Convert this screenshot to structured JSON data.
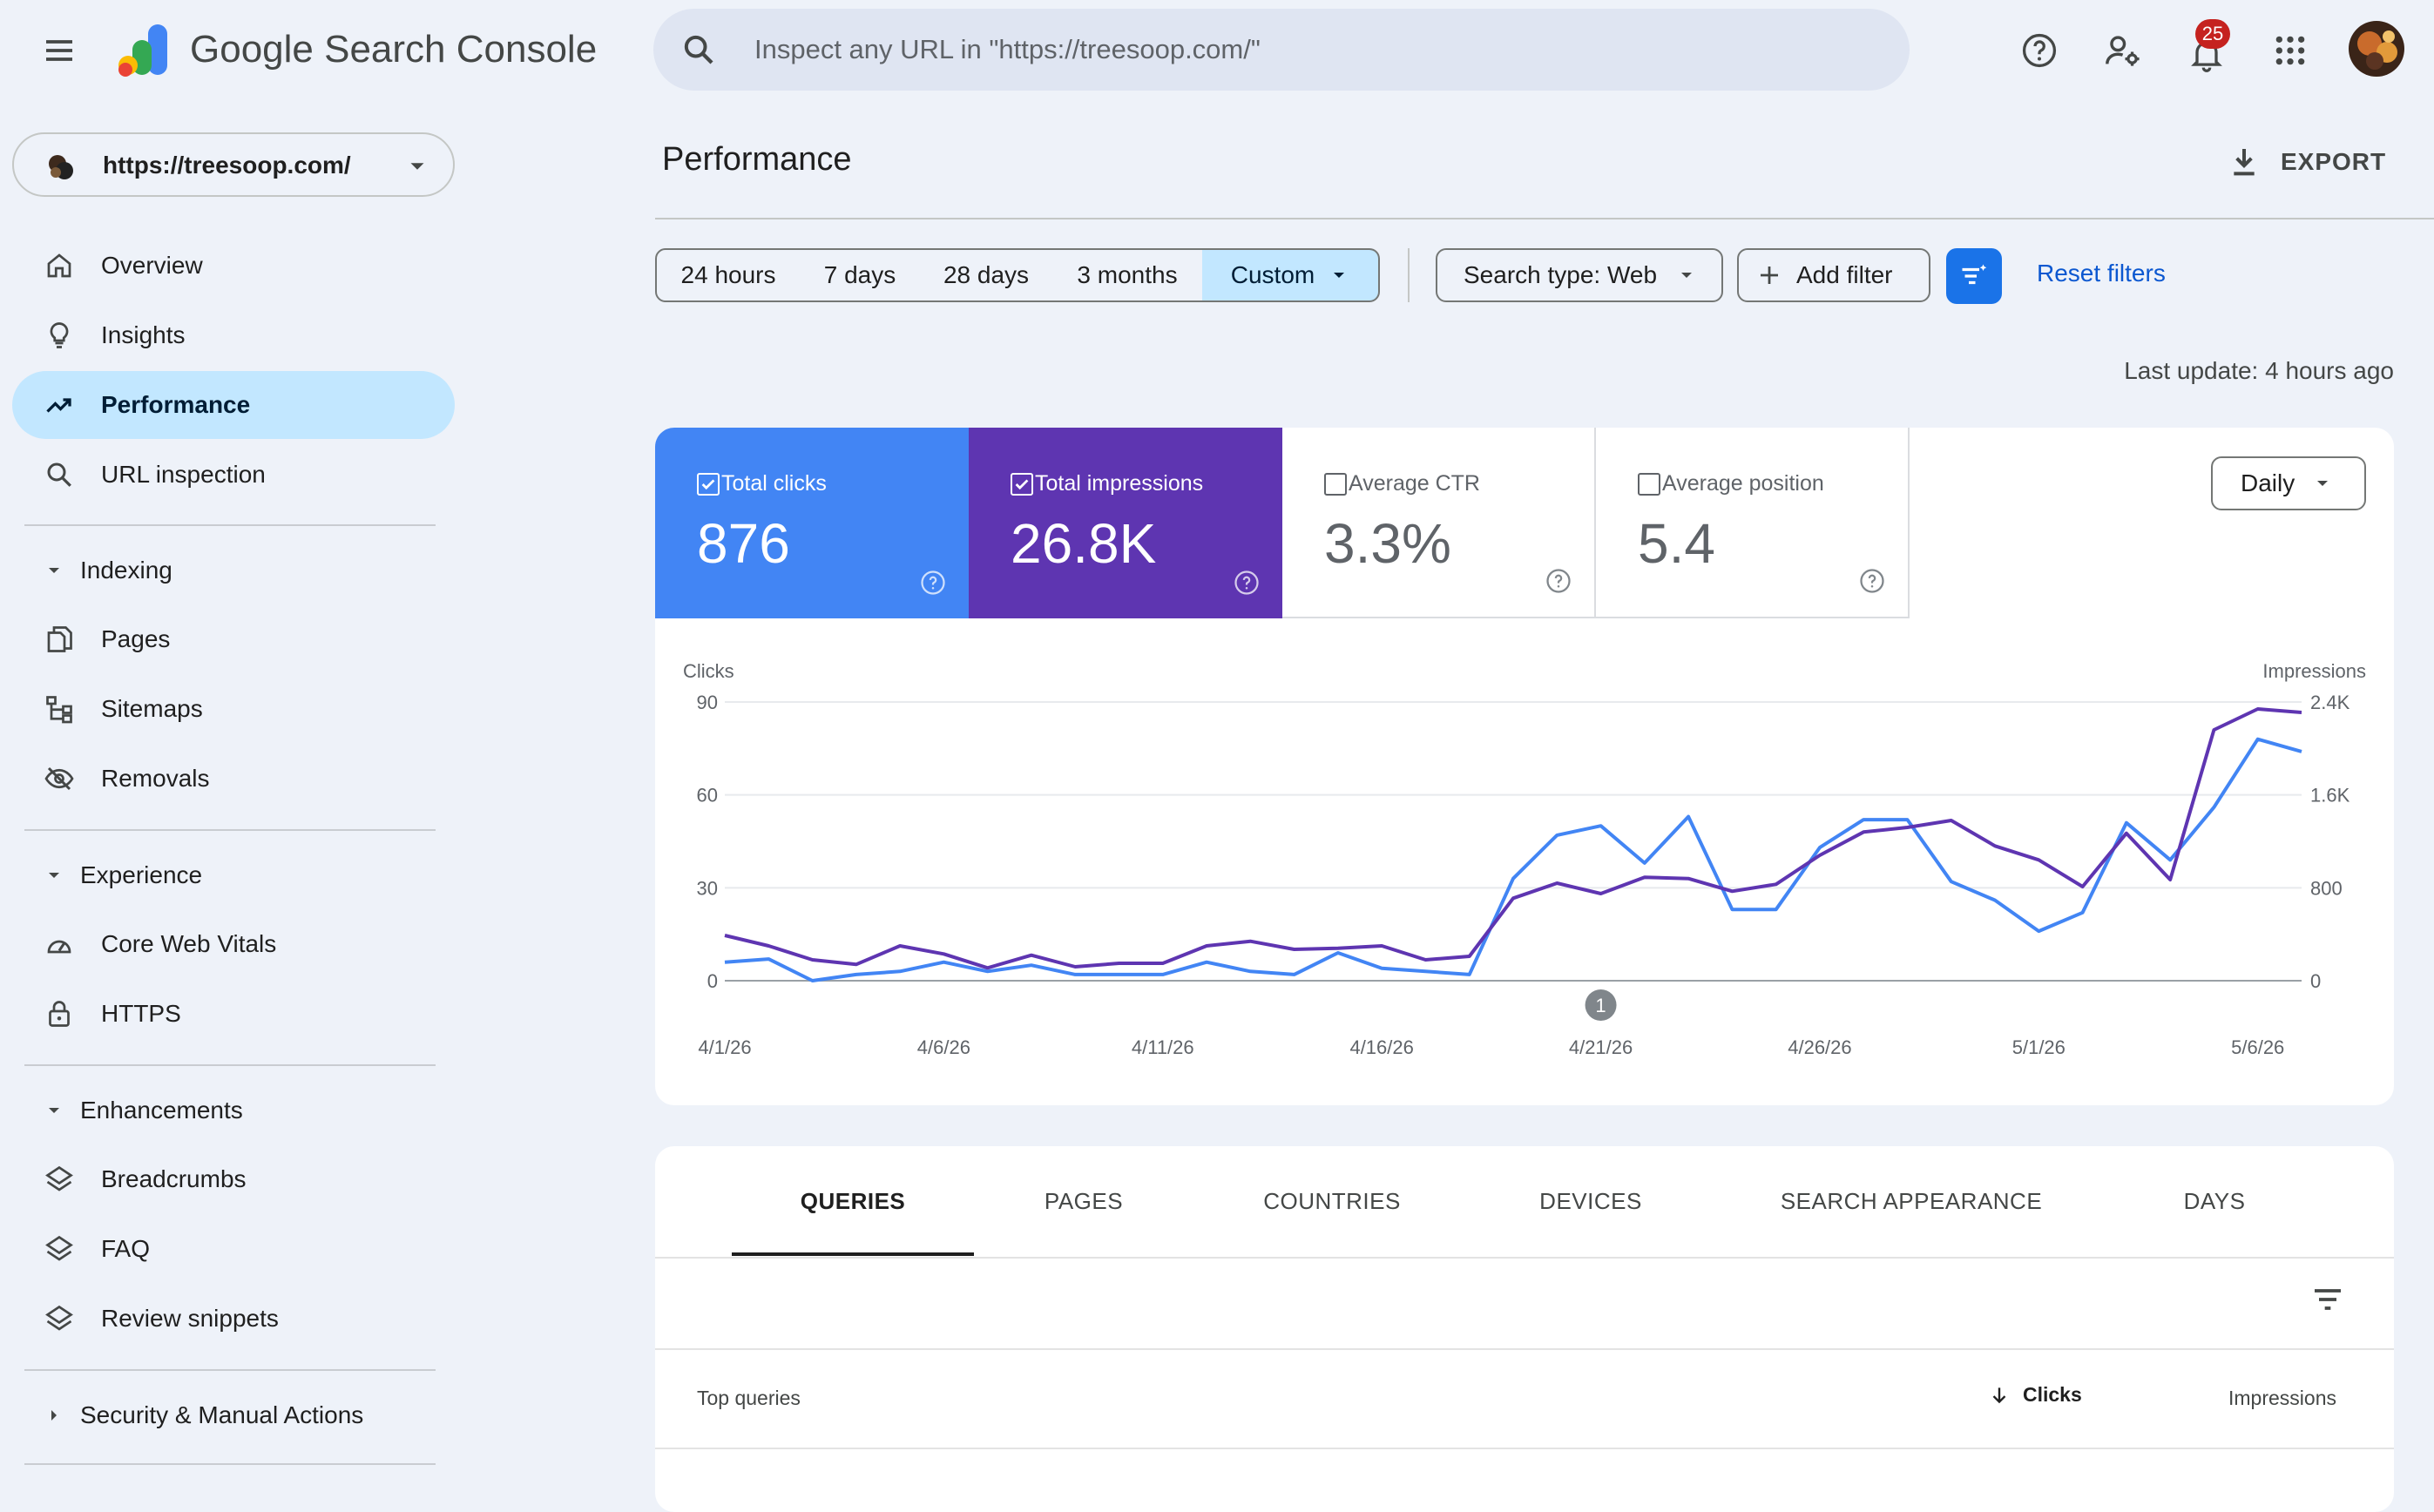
{
  "header": {
    "app_name": "Google Search Console",
    "search_placeholder": "Inspect any URL in \"https://treesoop.com/\"",
    "notification_count": "25"
  },
  "sidebar": {
    "property": "https://treesoop.com/",
    "items": [
      {
        "label": "Overview",
        "icon": "home-icon"
      },
      {
        "label": "Insights",
        "icon": "lightbulb-icon"
      },
      {
        "label": "Performance",
        "icon": "trending-up-icon",
        "active": true
      },
      {
        "label": "URL inspection",
        "icon": "search-icon"
      }
    ],
    "indexing": {
      "title": "Indexing",
      "items": [
        "Pages",
        "Sitemaps",
        "Removals"
      ]
    },
    "experience": {
      "title": "Experience",
      "items": [
        "Core Web Vitals",
        "HTTPS"
      ]
    },
    "enhancements": {
      "title": "Enhancements",
      "items": [
        "Breadcrumbs",
        "FAQ",
        "Review snippets"
      ]
    },
    "security": {
      "title": "Security & Manual Actions"
    }
  },
  "main": {
    "title": "Performance",
    "export_label": "EXPORT",
    "date_ranges": [
      "24 hours",
      "7 days",
      "28 days",
      "3 months",
      "Custom"
    ],
    "search_type": "Search type: Web",
    "add_filter": "Add filter",
    "reset_filters": "Reset filters",
    "last_update": "Last update: 4 hours ago",
    "granularity": "Daily",
    "metrics": [
      {
        "label": "Total clicks",
        "value": "876",
        "checked": true,
        "color": "#4285f4"
      },
      {
        "label": "Total impressions",
        "value": "26.8K",
        "checked": true,
        "color": "#5e35b1"
      },
      {
        "label": "Average CTR",
        "value": "3.3%",
        "checked": false
      },
      {
        "label": "Average position",
        "value": "5.4",
        "checked": false
      }
    ],
    "annotation_label": "1",
    "tabs": [
      "QUERIES",
      "PAGES",
      "COUNTRIES",
      "DEVICES",
      "SEARCH APPEARANCE",
      "DAYS"
    ],
    "table": {
      "title": "Top queries",
      "col_clicks": "Clicks",
      "col_impressions": "Impressions"
    }
  },
  "chart_data": {
    "type": "line",
    "left_axis_label": "Clicks",
    "right_axis_label": "Impressions",
    "left_ticks": [
      "90",
      "60",
      "30",
      "0"
    ],
    "right_ticks": [
      "2.4K",
      "1.6K",
      "800",
      "0"
    ],
    "ylim_left": [
      0,
      90
    ],
    "ylim_right": [
      0,
      2400
    ],
    "x_tick_labels": [
      "4/1/26",
      "4/6/26",
      "4/11/26",
      "4/16/26",
      "4/21/26",
      "4/26/26",
      "5/1/26",
      "5/6/26"
    ],
    "dates": [
      "4/1/26",
      "4/2/26",
      "4/3/26",
      "4/4/26",
      "4/5/26",
      "4/6/26",
      "4/7/26",
      "4/8/26",
      "4/9/26",
      "4/10/26",
      "4/11/26",
      "4/12/26",
      "4/13/26",
      "4/14/26",
      "4/15/26",
      "4/16/26",
      "4/17/26",
      "4/18/26",
      "4/19/26",
      "4/20/26",
      "4/21/26",
      "4/22/26",
      "4/23/26",
      "4/24/26",
      "4/25/26",
      "4/26/26",
      "4/27/26",
      "4/28/26",
      "4/29/26",
      "4/30/26",
      "5/1/26",
      "5/2/26",
      "5/3/26",
      "5/4/26",
      "5/5/26",
      "5/6/26",
      "5/7/26"
    ],
    "series": [
      {
        "name": "Clicks",
        "axis": "left",
        "color": "#4285f4",
        "values": [
          6,
          7,
          0,
          2,
          3,
          6,
          3,
          5,
          2,
          2,
          2,
          6,
          3,
          2,
          9,
          4,
          3,
          2,
          33,
          47,
          50,
          38,
          53,
          23,
          23,
          43,
          52,
          52,
          32,
          26,
          16,
          22,
          51,
          39,
          56,
          78,
          74
        ]
      },
      {
        "name": "Impressions",
        "axis": "right",
        "color": "#5e35b1",
        "values": [
          390,
          300,
          180,
          140,
          300,
          230,
          110,
          220,
          120,
          150,
          150,
          300,
          340,
          270,
          280,
          300,
          180,
          210,
          710,
          840,
          750,
          890,
          880,
          770,
          830,
          1080,
          1280,
          1320,
          1380,
          1160,
          1040,
          810,
          1270,
          870,
          2160,
          2340,
          2310
        ]
      }
    ],
    "annotation_date": "4/21/26",
    "grid": true
  }
}
